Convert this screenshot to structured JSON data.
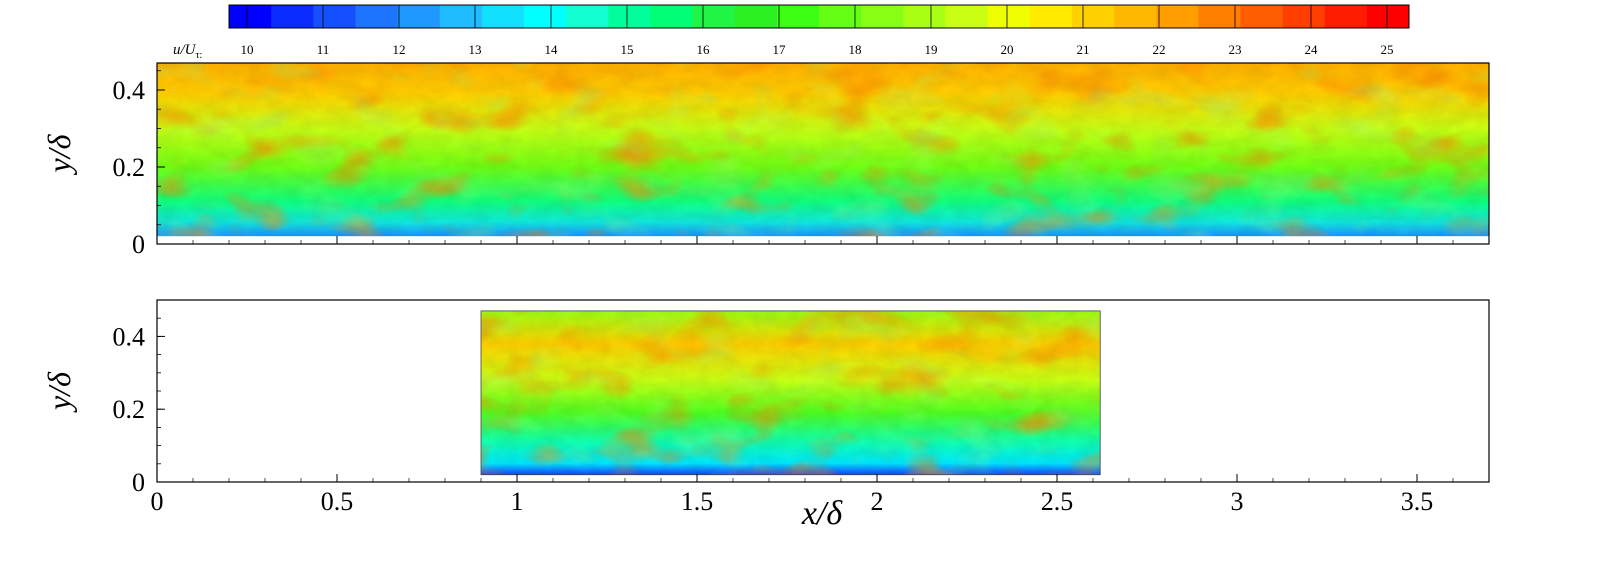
{
  "chart_data": [
    {
      "type": "heatmap",
      "xlabel": "",
      "ylabel": "y/δ",
      "xlim": [
        0,
        3.7
      ],
      "ylim": [
        0,
        0.47
      ],
      "y_ticks": [
        "0",
        "0.2",
        "0.4"
      ],
      "data_extent": {
        "x": [
          0,
          3.7
        ],
        "y": [
          0.02,
          0.47
        ]
      },
      "field": "u/Uτ"
    },
    {
      "type": "heatmap",
      "xlabel": "x/δ",
      "ylabel": "y/δ",
      "xlim": [
        0,
        3.7
      ],
      "ylim": [
        0,
        0.5
      ],
      "x_ticks": [
        "0",
        "0.5",
        "1",
        "1.5",
        "2",
        "2.5",
        "3",
        "3.5"
      ],
      "y_ticks": [
        "0",
        "0.2",
        "0.4"
      ],
      "data_extent": {
        "x": [
          0.9,
          2.62
        ],
        "y": [
          0.02,
          0.47
        ]
      },
      "field": "u/Uτ"
    }
  ],
  "colorbar": {
    "label": "u/Uτ:",
    "label_var": "u/U",
    "label_sub": "τ:",
    "range": [
      10,
      25.3
    ],
    "ticks": [
      "10",
      "11",
      "12",
      "13",
      "14",
      "15",
      "16",
      "17",
      "18",
      "19",
      "20",
      "21",
      "22",
      "23",
      "24",
      "25"
    ],
    "colors": [
      "#0000ff",
      "#0a2cff",
      "#1450ff",
      "#1c74ff",
      "#1f98ff",
      "#1fbcff",
      "#12e0ff",
      "#00ffff",
      "#14ffd0",
      "#00ff9c",
      "#00ff74",
      "#20f545",
      "#2cf022",
      "#3cff14",
      "#64ff14",
      "#86ff14",
      "#a8ff14",
      "#caff14",
      "#f0ff00",
      "#ffea00",
      "#ffd000",
      "#ffb800",
      "#ff9e00",
      "#ff7e00",
      "#ff5e00",
      "#ff3e00",
      "#ff1c00",
      "#ff0000"
    ]
  }
}
